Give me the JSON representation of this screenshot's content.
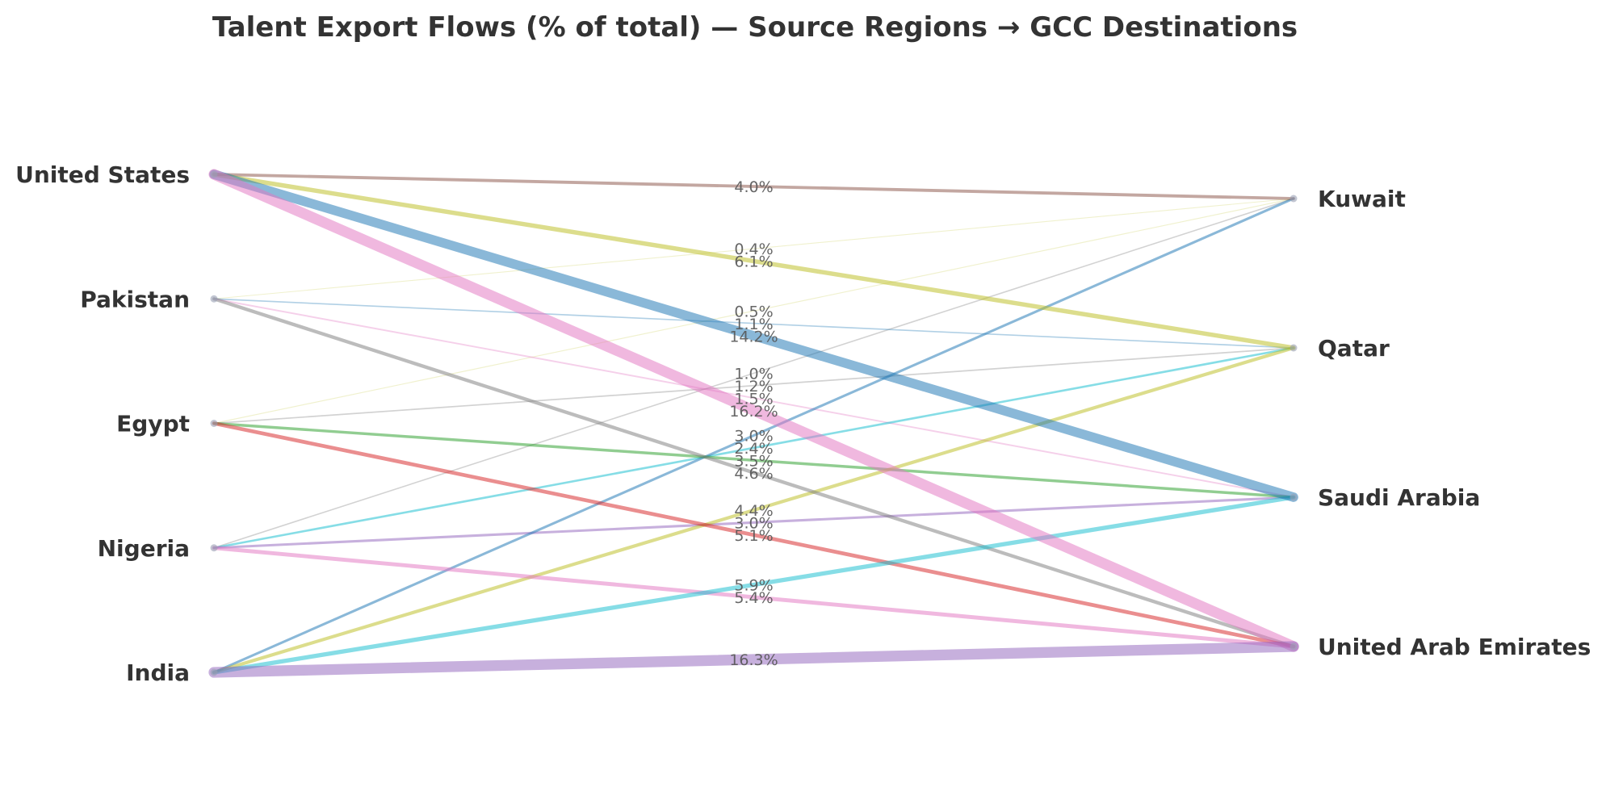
{
  "chart_data": {
    "type": "parallel-flow",
    "title": "Talent Export Flows (% of total) — Source Regions → GCC Destinations",
    "unit": "%",
    "sources": [
      "United States",
      "Pakistan",
      "Egypt",
      "Nigeria",
      "India"
    ],
    "destinations": [
      "Kuwait",
      "Qatar",
      "Saudi Arabia",
      "United Arab Emirates"
    ],
    "flows": [
      {
        "source": "United States",
        "destination": "Kuwait",
        "value": 4.0,
        "label": "4.0%",
        "color": "#8c564b"
      },
      {
        "source": "United States",
        "destination": "Qatar",
        "value": 6.1,
        "label": "6.1%",
        "color": "#bcbd22"
      },
      {
        "source": "United States",
        "destination": "Saudi Arabia",
        "value": 14.2,
        "label": "14.2%",
        "color": "#1f77b4"
      },
      {
        "source": "United States",
        "destination": "United Arab Emirates",
        "value": 16.2,
        "label": "16.2%",
        "color": "#e377c2"
      },
      {
        "source": "Pakistan",
        "destination": "Kuwait",
        "value": 0.4,
        "label": "0.4%",
        "color": "#bcbd22"
      },
      {
        "source": "Pakistan",
        "destination": "Qatar",
        "value": 1.1,
        "label": "1.1%",
        "color": "#1f77b4"
      },
      {
        "source": "Pakistan",
        "destination": "Saudi Arabia",
        "value": 1.5,
        "label": "1.5%",
        "color": "#e377c2"
      },
      {
        "source": "Pakistan",
        "destination": "United Arab Emirates",
        "value": 4.6,
        "label": "4.6%",
        "color": "#7f7f7f"
      },
      {
        "source": "Egypt",
        "destination": "Kuwait",
        "value": 0.5,
        "label": "0.5%",
        "color": "#bcbd22"
      },
      {
        "source": "Egypt",
        "destination": "Qatar",
        "value": 1.2,
        "label": "1.2%",
        "color": "#7f7f7f"
      },
      {
        "source": "Egypt",
        "destination": "Saudi Arabia",
        "value": 3.5,
        "label": "3.5%",
        "color": "#2ca02c"
      },
      {
        "source": "Egypt",
        "destination": "United Arab Emirates",
        "value": 5.1,
        "label": "5.1%",
        "color": "#d62728"
      },
      {
        "source": "Nigeria",
        "destination": "Kuwait",
        "value": 1.0,
        "label": "1.0%",
        "color": "#7f7f7f"
      },
      {
        "source": "Nigeria",
        "destination": "Qatar",
        "value": 2.4,
        "label": "2.4%",
        "color": "#17becf"
      },
      {
        "source": "Nigeria",
        "destination": "Saudi Arabia",
        "value": 3.0,
        "label": "3.0%",
        "color": "#9467bd"
      },
      {
        "source": "Nigeria",
        "destination": "United Arab Emirates",
        "value": 5.4,
        "label": "5.4%",
        "color": "#e377c2"
      },
      {
        "source": "India",
        "destination": "Kuwait",
        "value": 3.0,
        "label": "3.0%",
        "color": "#1f77b4"
      },
      {
        "source": "India",
        "destination": "Qatar",
        "value": 4.4,
        "label": "4.4%",
        "color": "#bcbd22"
      },
      {
        "source": "India",
        "destination": "Saudi Arabia",
        "value": 5.9,
        "label": "5.9%",
        "color": "#17becf"
      },
      {
        "source": "India",
        "destination": "United Arab Emirates",
        "value": 16.3,
        "label": "16.3%",
        "color": "#9467bd"
      }
    ],
    "grid": false,
    "legend": "none"
  }
}
